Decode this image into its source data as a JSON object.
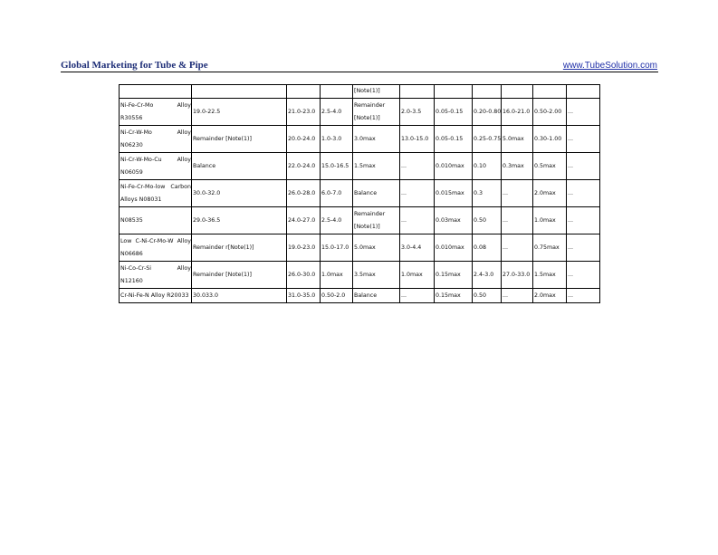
{
  "header": {
    "title": "Global Marketing for Tube & Pipe",
    "link": "www.TubeSolution.com"
  },
  "table": {
    "rows": [
      [
        "",
        "",
        "",
        "",
        "[Note(1)]",
        "",
        "",
        "",
        "",
        "",
        ""
      ],
      [
        "Ni-Fe-Cr-Mo Alloy R30556",
        "19.0-22.5",
        "21.0-23.0",
        "2.5-4.0",
        "Remainder [Note(1)]",
        "2.0-3.5",
        "0.05-0.15",
        "0.20-0.80",
        "16.0-21.0",
        "0.50-2.00",
        "..."
      ],
      [
        "Ni-Cr-W-Mo Alloy N06230",
        "Remainder [Note(1)]",
        "20.0-24.0",
        "1.0-3.0",
        "3.0max",
        "13.0-15.0",
        "0.05-0.15",
        "0.25-0.75",
        "5.0max",
        "0.30-1.00",
        "..."
      ],
      [
        "Ni-Cr-W-Mo-Cu Alloy N06059",
        "Balance",
        "22.0-24.0",
        "15.0-16.5",
        "1.5max",
        "...",
        "0.010max",
        "0.10",
        "0.3max",
        "0.5max",
        "..."
      ],
      [
        "Ni-Fe-Cr-Mo-low Carbon Alloys N08031",
        "30.0-32.0",
        "26.0-28.0",
        "6.0-7.0",
        "Balance",
        "...",
        "0.015max",
        "0.3",
        "...",
        "2.0max",
        "..."
      ],
      [
        "N08535",
        "29.0-36.5",
        "24.0-27.0",
        "2.5-4.0",
        "Remainder [Note(1)]",
        "...",
        "0.03max",
        "0.50",
        "...",
        "1.0max",
        "..."
      ],
      [
        "Low C-Ni-Cr-Mo-W Alloy N06686",
        "Remainder r[Note(1)]",
        "19.0-23.0",
        "15.0-17.0",
        "5.0max",
        "3.0-4.4",
        "0.010max",
        "0.08",
        "...",
        "0.75max",
        "..."
      ],
      [
        "Ni-Co-Cr-Si Alloy N12160",
        "Remainder [Note(1)]",
        "26.0-30.0",
        "1.0max",
        "3.5max",
        "1.0max",
        "0.15max",
        "2.4-3.0",
        "27.0-33.0",
        "1.5max",
        "..."
      ],
      [
        "Cr-Ni-Fe-N Alloy R20033",
        "30.033.0",
        "31.0-35.0",
        "0.50-2.0",
        "Balance",
        "...",
        "0.15max",
        "0.50",
        "...",
        "2.0max",
        "..."
      ]
    ]
  }
}
